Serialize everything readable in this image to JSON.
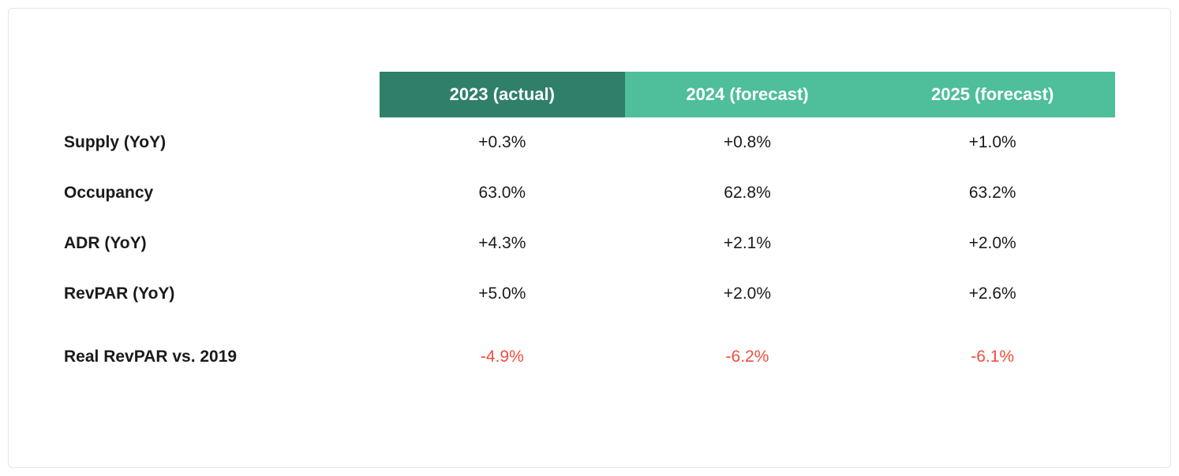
{
  "table": {
    "type": "table",
    "columns": [
      {
        "label": "2023 (actual)",
        "bg_color": "#2f7f6b"
      },
      {
        "label": "2024 (forecast)",
        "bg_color": "#4ebe9b"
      },
      {
        "label": "2025 (forecast)",
        "bg_color": "#4ebe9b"
      }
    ],
    "rows": [
      {
        "label": "Supply (YoY)",
        "values": [
          "+0.3%",
          "+0.8%",
          "+1.0%"
        ],
        "negative": false
      },
      {
        "label": "Occupancy",
        "values": [
          "63.0%",
          "62.8%",
          "63.2%"
        ],
        "negative": false
      },
      {
        "label": "ADR (YoY)",
        "values": [
          "+4.3%",
          "+2.1%",
          "+2.0%"
        ],
        "negative": false
      },
      {
        "label": "RevPAR (YoY)",
        "values": [
          "+5.0%",
          "+2.0%",
          "+2.6%"
        ],
        "negative": false
      },
      {
        "label": "Real RevPAR vs. 2019",
        "values": [
          "-4.9%",
          "-6.2%",
          "-6.1%"
        ],
        "negative": true,
        "spacer_before": true
      }
    ],
    "style": {
      "header_text_color": "#ffffff",
      "body_text_color": "#1a1a1a",
      "negative_color": "#f04e3e",
      "header_fontsize": 22,
      "body_fontsize": 21,
      "row_label_weight": 700,
      "background_color": "#ffffff",
      "border_color": "#e5e5e5"
    }
  }
}
